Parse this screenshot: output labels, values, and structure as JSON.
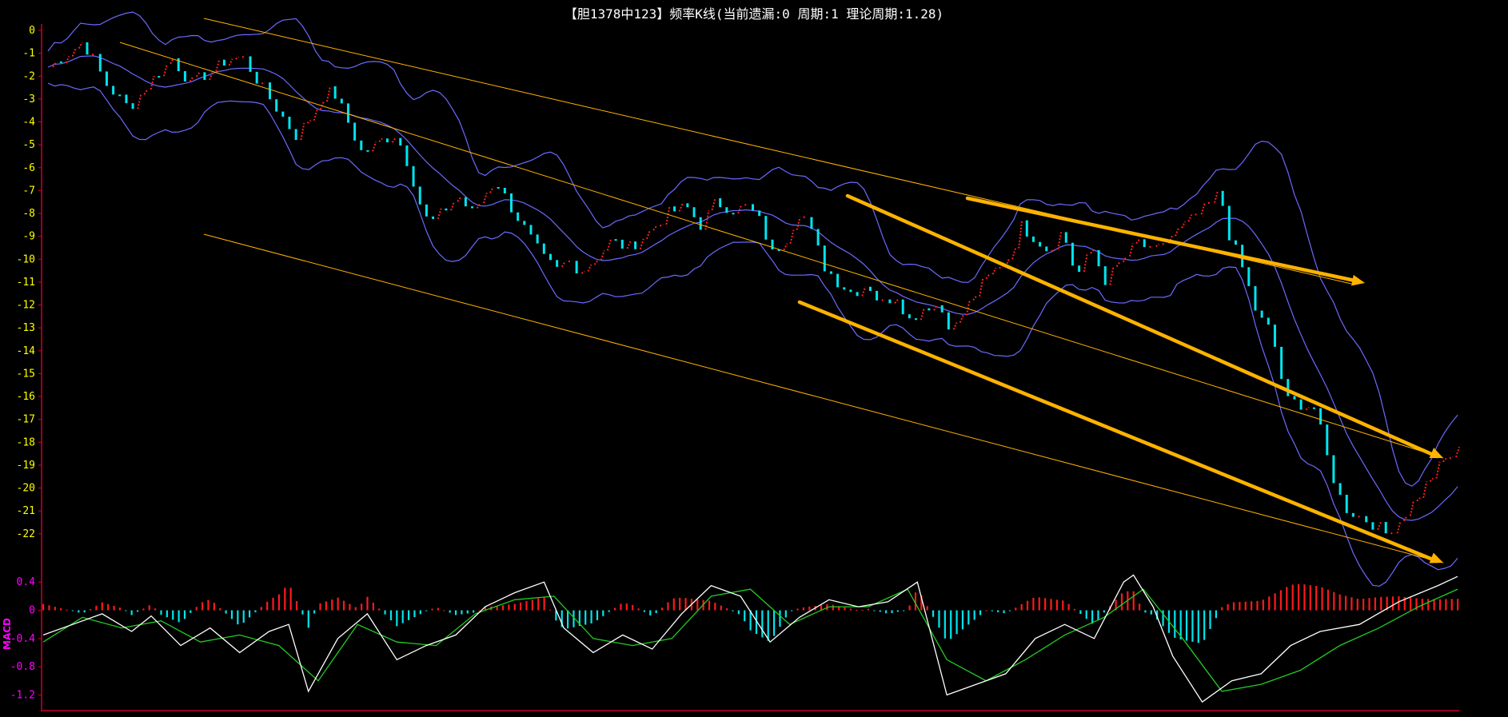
{
  "chart_data": [
    {
      "type": "candlestick",
      "title": "【胆1378中123】频率K线(当前遗漏:0 周期:1 理论周期:1.28)",
      "ylim": [
        -22.6,
        0
      ],
      "yticks": [
        0,
        -1,
        -2,
        -3,
        -4,
        -5,
        -6,
        -7,
        -8,
        -9,
        -10,
        -11,
        -12,
        -13,
        -14,
        -15,
        -16,
        -17,
        -18,
        -19,
        -20,
        -21,
        -22
      ],
      "up_color": "#ff2020",
      "down_color": "#00e5ee",
      "band_color": "#6a6aff",
      "trend_color": "#ffb300",
      "n_bars": 216,
      "close_path": [
        [
          0,
          -1.6
        ],
        [
          4,
          -1
        ],
        [
          7,
          -0.5
        ],
        [
          9,
          -1
        ],
        [
          12,
          -2.3
        ],
        [
          17,
          -3.4
        ],
        [
          21,
          -2.3
        ],
        [
          26,
          -1.2
        ],
        [
          30,
          -2.3
        ],
        [
          34,
          -1.8
        ],
        [
          38,
          -1.2
        ],
        [
          41,
          -1.2
        ],
        [
          45,
          -2.5
        ],
        [
          48,
          -3.4
        ],
        [
          52,
          -4.6
        ],
        [
          55,
          -3.8
        ],
        [
          58,
          -2.7
        ],
        [
          60,
          -2.7
        ],
        [
          63,
          -4
        ],
        [
          66,
          -5.4
        ],
        [
          70,
          -4.8
        ],
        [
          73,
          -4.5
        ],
        [
          76,
          -6
        ],
        [
          78,
          -7.5
        ],
        [
          80,
          -8.5
        ],
        [
          83,
          -7.9
        ],
        [
          86,
          -7.2
        ],
        [
          89,
          -8
        ],
        [
          92,
          -7
        ],
        [
          94,
          -6.5
        ],
        [
          96,
          -7.3
        ],
        [
          99,
          -8.3
        ],
        [
          101,
          -9
        ],
        [
          104,
          -10
        ],
        [
          107,
          -10.5
        ],
        [
          109,
          -10
        ],
        [
          112,
          -10.5
        ],
        [
          115,
          -9.9
        ],
        [
          118,
          -9.2
        ],
        [
          122,
          -9.5
        ],
        [
          126,
          -8.8
        ],
        [
          130,
          -8
        ],
        [
          134,
          -7.7
        ],
        [
          137,
          -8.5
        ],
        [
          140,
          -7.5
        ],
        [
          144,
          -7.8
        ],
        [
          147,
          -7.7
        ],
        [
          150,
          -8.5
        ],
        [
          152,
          -9.8
        ],
        [
          155,
          -9
        ],
        [
          158,
          -7.7
        ],
        [
          160,
          -8.7
        ],
        [
          163,
          -10.3
        ],
        [
          166,
          -11
        ],
        [
          169,
          -11.5
        ],
        [
          172,
          -11
        ],
        [
          175,
          -12
        ],
        [
          178,
          -11.5
        ],
        [
          181,
          -12.7
        ],
        [
          184,
          -12
        ],
        [
          187,
          -12
        ],
        [
          190,
          -13.1
        ],
        [
          193,
          -12
        ],
        [
          196,
          -11.1
        ],
        [
          199,
          -10.4
        ],
        [
          202,
          -9.8
        ],
        [
          204,
          -8.5
        ],
        [
          207,
          -9
        ],
        [
          210,
          -9.6
        ],
        [
          213,
          -8.7
        ],
        [
          216,
          -10.8
        ]
      ],
      "close_path2": [
        [
          216,
          -10.8
        ],
        [
          219,
          -9.5
        ],
        [
          222,
          -10.9
        ],
        [
          226,
          -9.9
        ],
        [
          229,
          -9.2
        ],
        [
          232,
          -9.8
        ],
        [
          235,
          -9.1
        ],
        [
          238,
          -8.6
        ],
        [
          241,
          -8.1
        ],
        [
          244,
          -7.6
        ],
        [
          246,
          -7
        ],
        [
          248,
          -8.9
        ],
        [
          251,
          -10.5
        ],
        [
          254,
          -12.5
        ],
        [
          257,
          -13.2
        ],
        [
          260,
          -16.2
        ],
        [
          263,
          -16.3
        ],
        [
          266,
          -16.5
        ],
        [
          269,
          -19
        ],
        [
          272,
          -20.8
        ],
        [
          275,
          -21.2
        ],
        [
          278,
          -21.5
        ],
        [
          281,
          -22
        ],
        [
          284,
          -21.3
        ],
        [
          287,
          -20.5
        ],
        [
          290,
          -19.6
        ],
        [
          293,
          -18.8
        ],
        [
          296,
          -18.4
        ]
      ],
      "trend_lines": [
        [
          [
            255,
            23
          ],
          [
            1690,
            355
          ]
        ],
        [
          [
            150,
            53
          ],
          [
            1805,
            573
          ]
        ],
        [
          [
            255,
            293
          ],
          [
            1805,
            704
          ]
        ]
      ],
      "arrows": [
        [
          [
            1210,
            248
          ],
          [
            1707,
            354
          ]
        ],
        [
          [
            1060,
            245
          ],
          [
            1805,
            573
          ]
        ],
        [
          [
            1000,
            378
          ],
          [
            1805,
            704
          ]
        ]
      ],
      "x_extent": [
        52,
        1825
      ]
    },
    {
      "type": "macd",
      "ylabel": "MACD",
      "ylim": [
        -1.4,
        0.55
      ],
      "yticks": [
        0.4,
        0,
        -0.4,
        -0.8,
        -1.2
      ],
      "macd_color": "#ffffff",
      "signal_color": "#22cc22",
      "dif": [
        [
          0,
          -0.35
        ],
        [
          15,
          -0.2
        ],
        [
          30,
          -0.05
        ],
        [
          45,
          -0.3
        ],
        [
          55,
          -0.08
        ],
        [
          70,
          -0.5
        ],
        [
          85,
          -0.25
        ],
        [
          100,
          -0.6
        ],
        [
          115,
          -0.3
        ],
        [
          125,
          -0.2
        ],
        [
          135,
          -1.15
        ],
        [
          150,
          -0.4
        ],
        [
          165,
          -0.05
        ],
        [
          180,
          -0.7
        ],
        [
          195,
          -0.5
        ],
        [
          210,
          -0.35
        ],
        [
          225,
          0.05
        ],
        [
          240,
          0.25
        ],
        [
          255,
          0.4
        ],
        [
          265,
          -0.25
        ],
        [
          280,
          -0.6
        ],
        [
          295,
          -0.35
        ],
        [
          310,
          -0.55
        ],
        [
          325,
          -0.05
        ],
        [
          340,
          0.35
        ],
        [
          355,
          0.2
        ],
        [
          370,
          -0.45
        ],
        [
          385,
          -0.1
        ],
        [
          400,
          0.15
        ],
        [
          415,
          0.05
        ],
        [
          430,
          0.12
        ],
        [
          445,
          0.4
        ],
        [
          460,
          -1.2
        ],
        [
          475,
          -1.05
        ],
        [
          490,
          -0.9
        ],
        [
          505,
          -0.4
        ],
        [
          520,
          -0.2
        ],
        [
          535,
          -0.4
        ],
        [
          550,
          0.4
        ],
        [
          555,
          0.5
        ],
        [
          565,
          0.05
        ],
        [
          575,
          -0.65
        ],
        [
          590,
          -1.3
        ],
        [
          605,
          -1.0
        ],
        [
          620,
          -0.9
        ],
        [
          635,
          -0.5
        ],
        [
          650,
          -0.3
        ],
        [
          670,
          -0.2
        ],
        [
          690,
          0.12
        ],
        [
          710,
          0.35
        ],
        [
          720,
          0.48
        ]
      ],
      "sig": [
        [
          0,
          -0.45
        ],
        [
          20,
          -0.1
        ],
        [
          40,
          -0.25
        ],
        [
          60,
          -0.15
        ],
        [
          80,
          -0.45
        ],
        [
          100,
          -0.35
        ],
        [
          120,
          -0.5
        ],
        [
          140,
          -1.0
        ],
        [
          160,
          -0.2
        ],
        [
          180,
          -0.45
        ],
        [
          200,
          -0.5
        ],
        [
          220,
          -0.05
        ],
        [
          240,
          0.15
        ],
        [
          260,
          0.2
        ],
        [
          280,
          -0.4
        ],
        [
          300,
          -0.5
        ],
        [
          320,
          -0.4
        ],
        [
          340,
          0.2
        ],
        [
          360,
          0.3
        ],
        [
          380,
          -0.2
        ],
        [
          400,
          0.05
        ],
        [
          420,
          0.05
        ],
        [
          440,
          0.3
        ],
        [
          460,
          -0.7
        ],
        [
          480,
          -1.0
        ],
        [
          500,
          -0.7
        ],
        [
          520,
          -0.35
        ],
        [
          540,
          -0.1
        ],
        [
          560,
          0.3
        ],
        [
          580,
          -0.4
        ],
        [
          600,
          -1.15
        ],
        [
          620,
          -1.05
        ],
        [
          640,
          -0.85
        ],
        [
          660,
          -0.5
        ],
        [
          680,
          -0.25
        ],
        [
          700,
          0.05
        ],
        [
          720,
          0.3
        ]
      ]
    }
  ]
}
